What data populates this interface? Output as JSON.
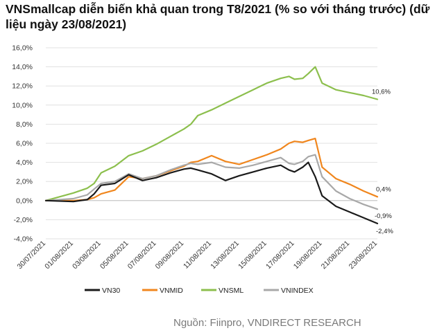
{
  "title": "VNSmallcap diễn biến khả quan trong T8/2021 (% so với tháng trước) (dữ liệu ngày 23/08/2021)",
  "source": "Nguồn: Fiinpro, VNDIRECT RESEARCH",
  "chart_data": {
    "type": "line",
    "ylim": [
      -4,
      16
    ],
    "yticks": [
      -4,
      -2,
      0,
      2,
      4,
      6,
      8,
      10,
      12,
      14,
      16
    ],
    "ytick_labels": [
      "-4,0%",
      "-2,0%",
      "0,0%",
      "2,0%",
      "4,0%",
      "6,0%",
      "8,0%",
      "10,0%",
      "12,0%",
      "14,0%",
      "16,0%"
    ],
    "xlim": [
      0,
      24
    ],
    "xtick_labels": [
      "30/07/2021",
      "01/08/2021",
      "03/08/2021",
      "05/08/2021",
      "07/08/2021",
      "09/08/2021",
      "11/08/2021",
      "13/08/2021",
      "15/08/2021",
      "17/08/2021",
      "19/08/2021",
      "21/08/2021",
      "23/08/2021"
    ],
    "x": [
      0,
      2,
      3,
      3.5,
      4,
      5,
      6,
      7,
      8,
      9,
      10,
      10.5,
      11,
      12,
      13,
      14,
      15,
      16,
      17,
      17.6,
      18,
      18.6,
      19,
      19.5,
      20,
      21,
      22,
      23,
      24
    ],
    "series": [
      {
        "name": "VN30",
        "color": "#1a1a1a",
        "values": [
          0,
          -0.1,
          0.1,
          0.7,
          1.6,
          1.8,
          2.7,
          2.1,
          2.4,
          2.9,
          3.3,
          3.4,
          3.2,
          2.8,
          2.1,
          2.6,
          3.0,
          3.4,
          3.7,
          3.2,
          3.0,
          3.5,
          4.0,
          2.5,
          0.5,
          -0.6,
          -1.2,
          -1.8,
          -2.4
        ]
      },
      {
        "name": "VNMID",
        "color": "#f0861d",
        "values": [
          0,
          0,
          0.1,
          0.3,
          0.7,
          1.1,
          2.5,
          2.3,
          2.6,
          3.1,
          3.6,
          4.0,
          4.1,
          4.7,
          4.1,
          3.8,
          4.3,
          4.8,
          5.4,
          6.0,
          6.2,
          6.1,
          6.3,
          6.5,
          3.5,
          2.3,
          1.7,
          1.0,
          0.4
        ]
      },
      {
        "name": "VNSML",
        "color": "#8cbf4d",
        "values": [
          0,
          0.8,
          1.3,
          1.8,
          2.9,
          3.6,
          4.7,
          5.2,
          5.9,
          6.7,
          7.5,
          8.0,
          8.9,
          9.5,
          10.2,
          10.9,
          11.6,
          12.3,
          12.8,
          13.0,
          12.7,
          12.8,
          13.3,
          14.0,
          12.3,
          11.6,
          11.3,
          11.0,
          10.6
        ]
      },
      {
        "name": "VNINDEX",
        "color": "#a8a8a8",
        "values": [
          0,
          0.2,
          0.6,
          1.2,
          1.8,
          2.0,
          2.8,
          2.3,
          2.6,
          3.2,
          3.7,
          3.9,
          3.8,
          4.0,
          3.5,
          3.4,
          3.7,
          4.1,
          4.5,
          3.9,
          3.8,
          4.1,
          4.6,
          4.8,
          2.5,
          1.0,
          0.2,
          -0.4,
          -0.9
        ]
      }
    ],
    "end_labels": [
      "-2,4%",
      "0,4%",
      "10,6%",
      "-0,9%"
    ]
  }
}
